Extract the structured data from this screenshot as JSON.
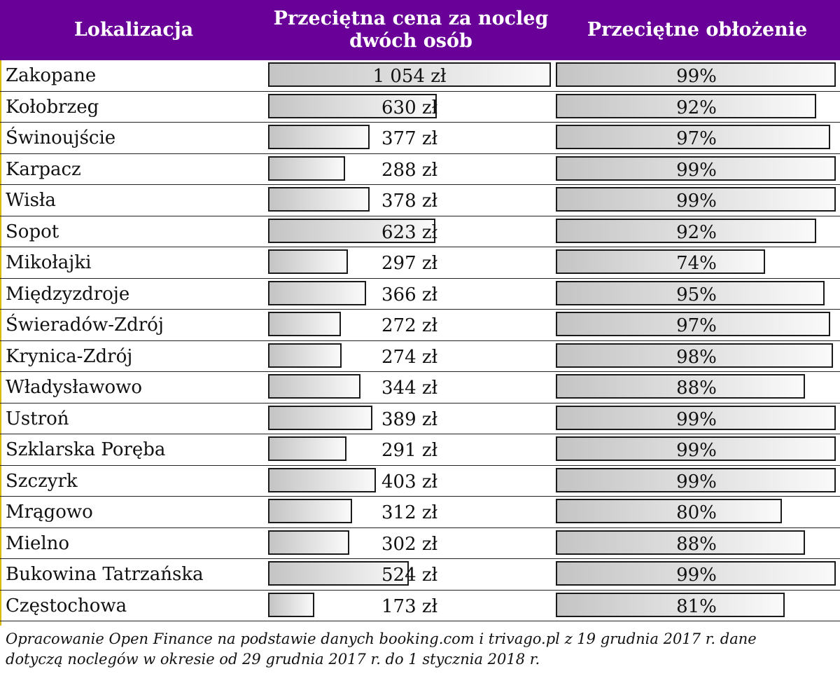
{
  "header": {
    "col_location": "Lokalizacja",
    "col_price_line1": "Przeciętna cena za nocleg",
    "col_price_line2": "dwóch osób",
    "col_occupancy": "Przeciętne obłożenie"
  },
  "chart_data": {
    "type": "table",
    "columns": [
      "Lokalizacja",
      "Przeciętna cena za nocleg dwóch osób",
      "Przeciętne obłożenie"
    ],
    "price_max": 1054,
    "occupancy_max": 99,
    "rows": [
      {
        "name": "Zakopane",
        "price": 1054,
        "price_label": "1 054 zł",
        "occupancy": 99,
        "occupancy_label": "99%"
      },
      {
        "name": "Kołobrzeg",
        "price": 630,
        "price_label": "630 zł",
        "occupancy": 92,
        "occupancy_label": "92%"
      },
      {
        "name": "Świnoujście",
        "price": 377,
        "price_label": "377 zł",
        "occupancy": 97,
        "occupancy_label": "97%"
      },
      {
        "name": "Karpacz",
        "price": 288,
        "price_label": "288 zł",
        "occupancy": 99,
        "occupancy_label": "99%"
      },
      {
        "name": "Wisła",
        "price": 378,
        "price_label": "378 zł",
        "occupancy": 99,
        "occupancy_label": "99%"
      },
      {
        "name": "Sopot",
        "price": 623,
        "price_label": "623 zł",
        "occupancy": 92,
        "occupancy_label": "92%"
      },
      {
        "name": "Mikołajki",
        "price": 297,
        "price_label": "297 zł",
        "occupancy": 74,
        "occupancy_label": "74%"
      },
      {
        "name": "Międzyzdroje",
        "price": 366,
        "price_label": "366 zł",
        "occupancy": 95,
        "occupancy_label": "95%"
      },
      {
        "name": "Świeradów-Zdrój",
        "price": 272,
        "price_label": "272 zł",
        "occupancy": 97,
        "occupancy_label": "97%"
      },
      {
        "name": "Krynica-Zdrój",
        "price": 274,
        "price_label": "274 zł",
        "occupancy": 98,
        "occupancy_label": "98%"
      },
      {
        "name": "Władysławowo",
        "price": 344,
        "price_label": "344 zł",
        "occupancy": 88,
        "occupancy_label": "88%"
      },
      {
        "name": "Ustroń",
        "price": 389,
        "price_label": "389 zł",
        "occupancy": 99,
        "occupancy_label": "99%"
      },
      {
        "name": "Szklarska Poręba",
        "price": 291,
        "price_label": "291 zł",
        "occupancy": 99,
        "occupancy_label": "99%"
      },
      {
        "name": "Szczyrk",
        "price": 403,
        "price_label": "403 zł",
        "occupancy": 99,
        "occupancy_label": "99%"
      },
      {
        "name": "Mrągowo",
        "price": 312,
        "price_label": "312 zł",
        "occupancy": 80,
        "occupancy_label": "80%"
      },
      {
        "name": "Mielno",
        "price": 302,
        "price_label": "302 zł",
        "occupancy": 88,
        "occupancy_label": "88%"
      },
      {
        "name": "Bukowina Tatrzańska",
        "price": 524,
        "price_label": "524 zł",
        "occupancy": 99,
        "occupancy_label": "99%"
      },
      {
        "name": "Częstochowa",
        "price": 173,
        "price_label": "173 zł",
        "occupancy": 81,
        "occupancy_label": "81%"
      }
    ]
  },
  "footnote": {
    "line1": "Opracowanie Open Finance na podstawie danych booking.com i trivago.pl z 19 grudnia 2017 r. dane",
    "line2": "dotyczą noclegów w okresie od 29 grudnia 2017 r. do 1 stycznia 2018 r."
  }
}
